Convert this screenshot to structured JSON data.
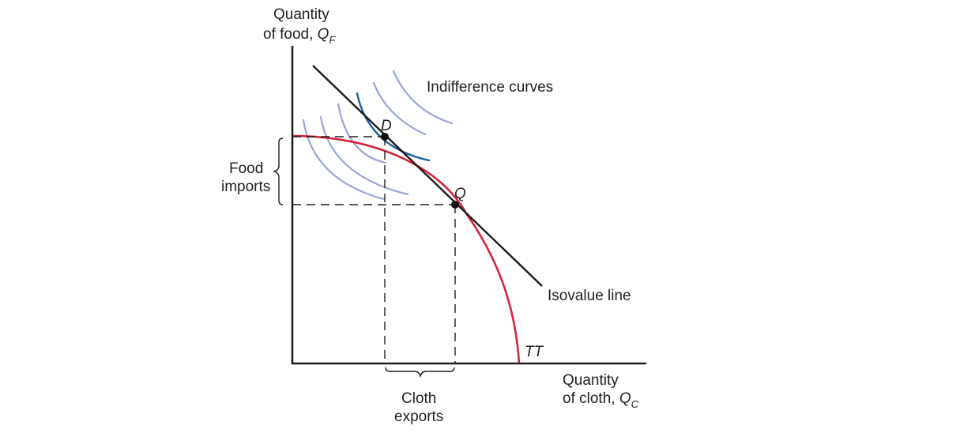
{
  "y_axis": {
    "line1": "Quantity",
    "line2": "of food, ",
    "symbol": "Q",
    "subscript": "F"
  },
  "x_axis": {
    "line1": "Quantity",
    "line2": "of cloth, ",
    "symbol": "Q",
    "subscript": "C"
  },
  "indifference_label": "Indifference curves",
  "isovalue_label": "Isovalue line",
  "frontier_label": "TT",
  "point_D": "D",
  "point_Q": "Q",
  "food_imports": {
    "line1": "Food",
    "line2": "imports"
  },
  "cloth_exports": {
    "line1": "Cloth",
    "line2": "exports"
  },
  "colors": {
    "axis": "#231f20",
    "frontier": "#d2263a",
    "isovalue": "#1a1a1a",
    "tangent_indifference": "#1f5fa0",
    "other_indifference": "#9aa4d8",
    "dashed": "#231f20"
  }
}
